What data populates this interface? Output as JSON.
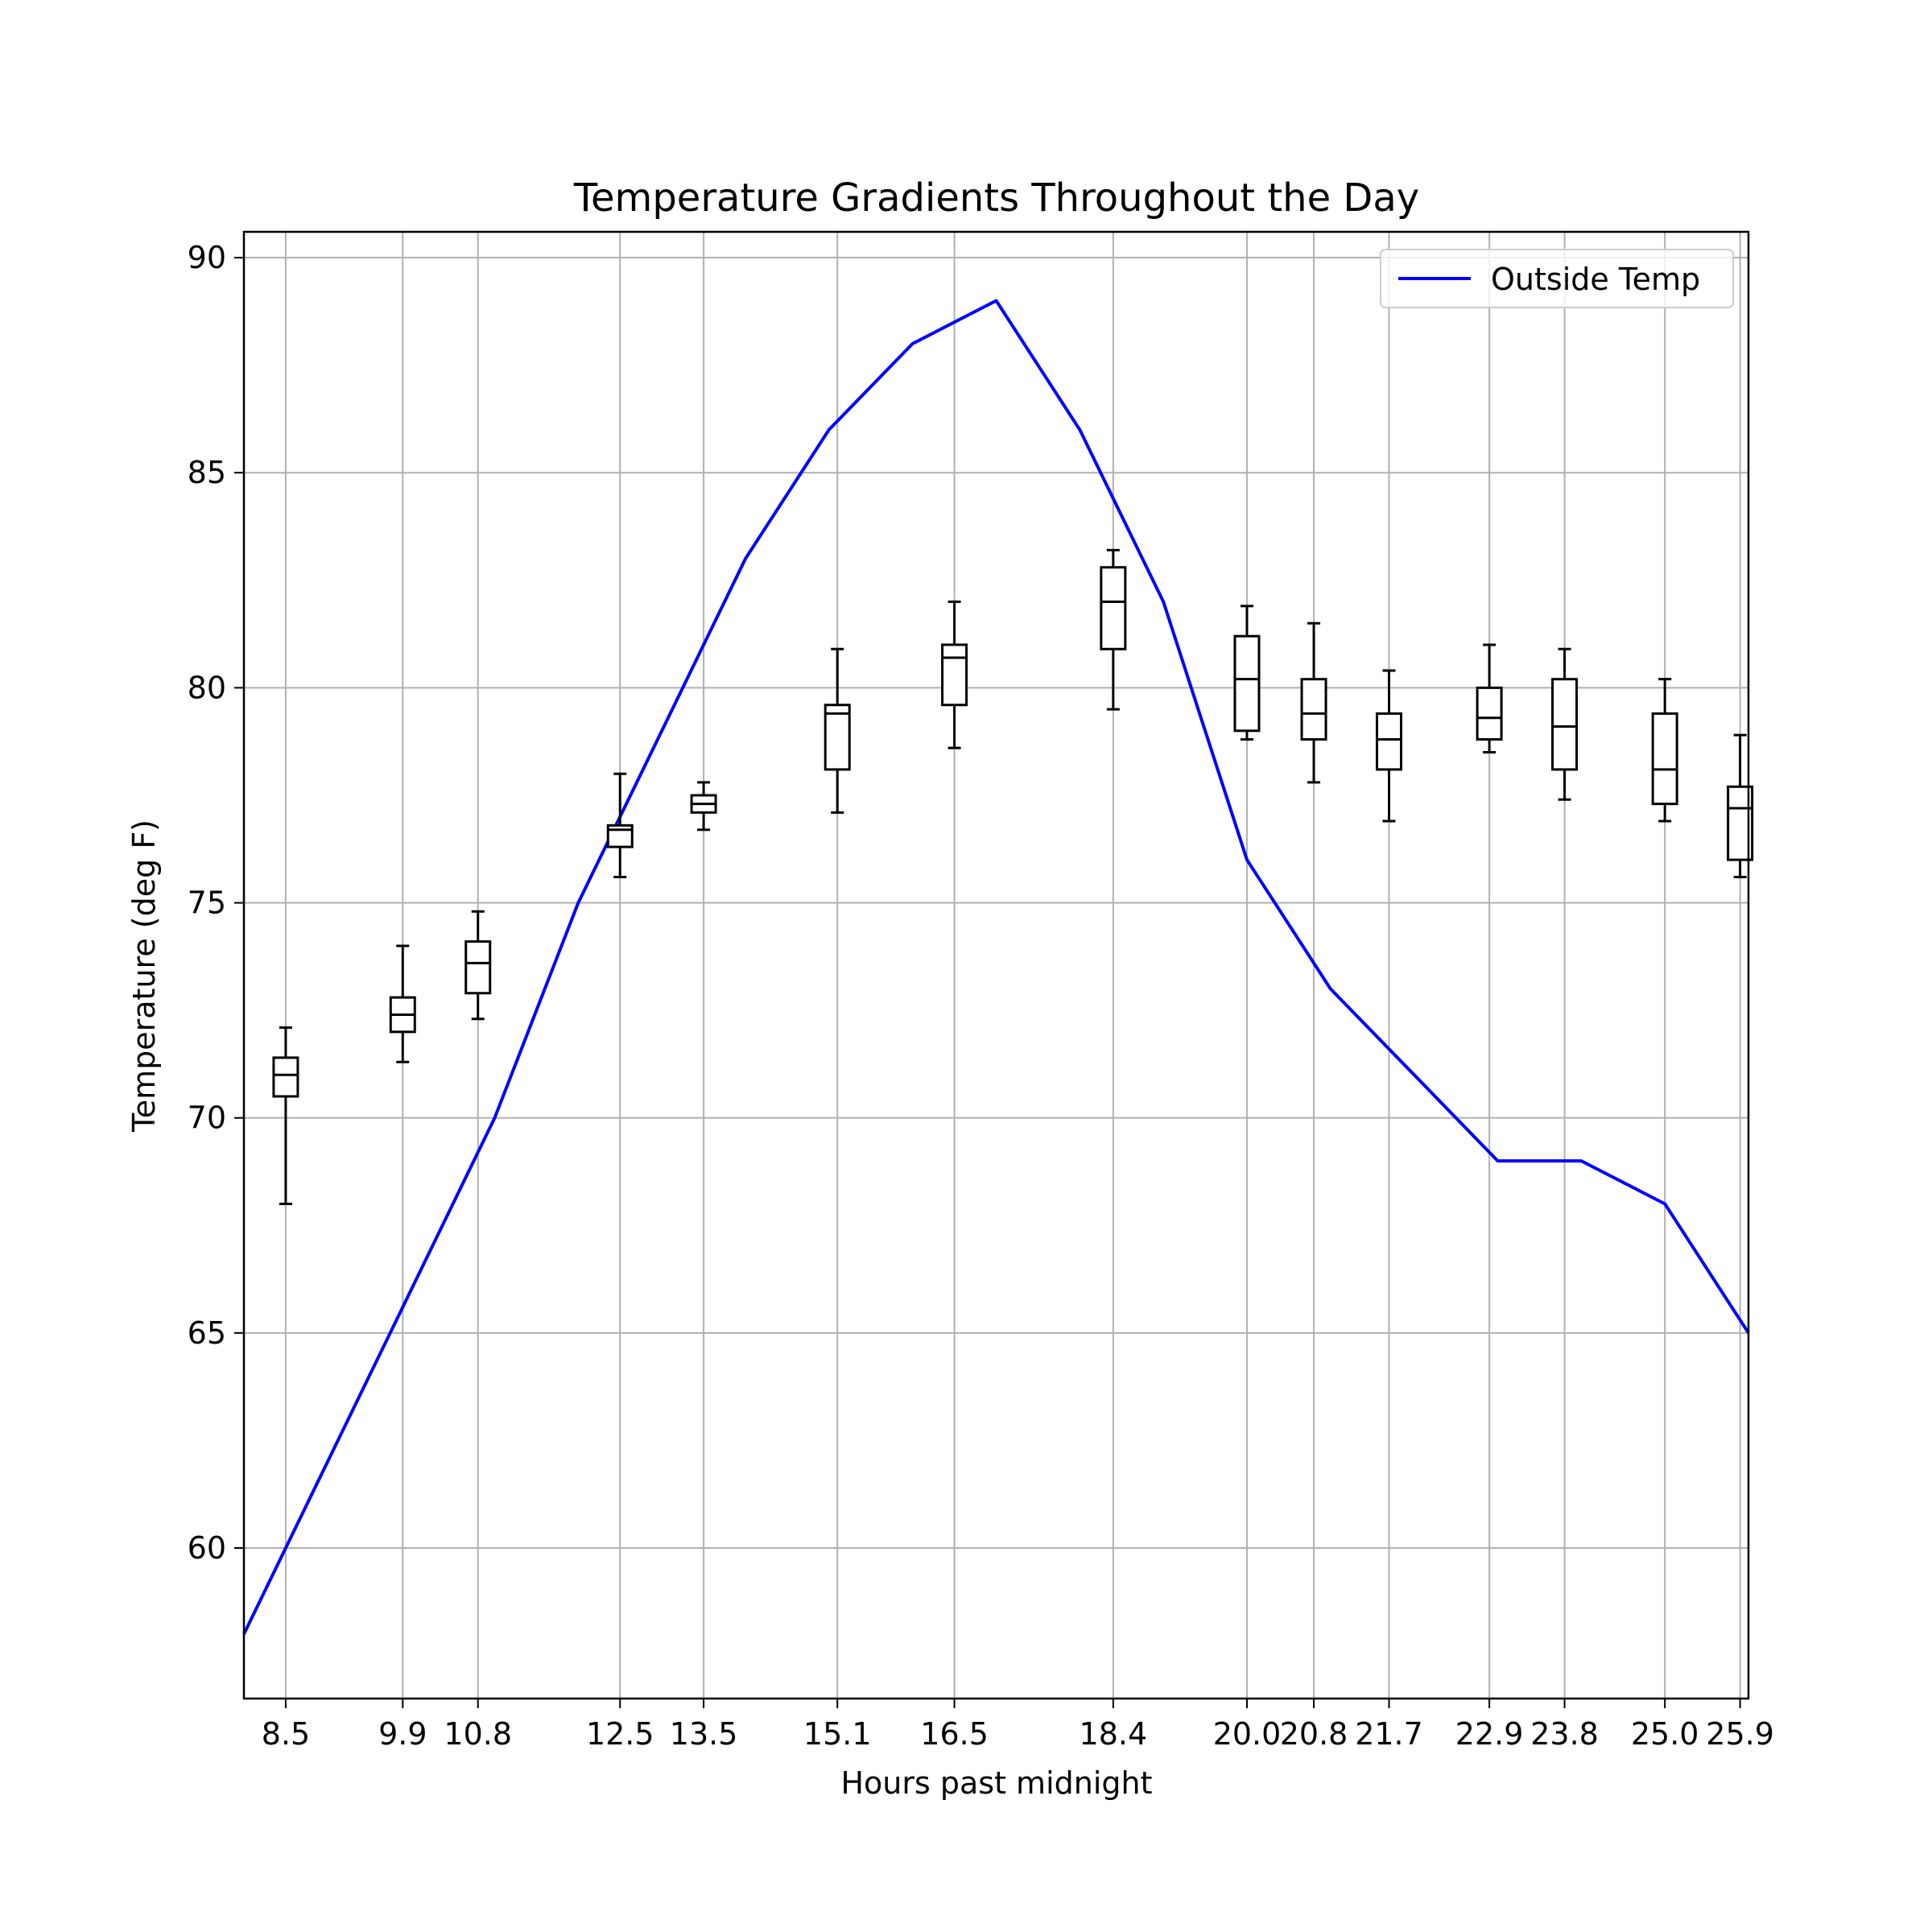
{
  "chart_data": {
    "type": "box",
    "title": "Temperature Gradients Throughout the Day",
    "xlabel": "Hours past midnight",
    "ylabel": "Temperature (deg F)",
    "xlim": [
      8.0,
      26.0
    ],
    "ylim": [
      56.5,
      90.6
    ],
    "x_ticks": [
      8.5,
      9.9,
      10.8,
      12.5,
      13.5,
      15.1,
      16.5,
      18.4,
      20.0,
      20.8,
      21.7,
      22.9,
      23.8,
      25.0,
      25.9
    ],
    "x_tick_labels": [
      "8.5",
      "9.9",
      "10.8",
      "12.5",
      "13.5",
      "15.1",
      "16.5",
      "18.4",
      "20.0",
      "20.8",
      "21.7",
      "22.9",
      "23.8",
      "25.0",
      "25.9"
    ],
    "y_ticks": [
      60,
      65,
      70,
      75,
      80,
      85,
      90
    ],
    "y_tick_labels": [
      "60",
      "65",
      "70",
      "75",
      "80",
      "85",
      "90"
    ],
    "grid": true,
    "legend": {
      "position": "top-right",
      "entries": [
        "Outside Temp"
      ]
    },
    "boxes": [
      {
        "x": 8.5,
        "whisker_low": 68.0,
        "q1": 70.5,
        "median": 71.0,
        "q3": 71.4,
        "whisker_high": 72.1
      },
      {
        "x": 9.9,
        "whisker_low": 71.3,
        "q1": 72.0,
        "median": 72.4,
        "q3": 72.8,
        "whisker_high": 74.0
      },
      {
        "x": 10.8,
        "whisker_low": 72.3,
        "q1": 72.9,
        "median": 73.6,
        "q3": 74.1,
        "whisker_high": 74.8
      },
      {
        "x": 12.5,
        "whisker_low": 75.6,
        "q1": 76.3,
        "median": 76.7,
        "q3": 76.8,
        "whisker_high": 78.0
      },
      {
        "x": 13.5,
        "whisker_low": 76.7,
        "q1": 77.1,
        "median": 77.3,
        "q3": 77.5,
        "whisker_high": 77.8
      },
      {
        "x": 15.1,
        "whisker_low": 77.1,
        "q1": 78.1,
        "median": 79.4,
        "q3": 79.6,
        "whisker_high": 80.9
      },
      {
        "x": 16.5,
        "whisker_low": 78.6,
        "q1": 79.6,
        "median": 80.7,
        "q3": 81.0,
        "whisker_high": 82.0
      },
      {
        "x": 18.4,
        "whisker_low": 79.5,
        "q1": 80.9,
        "median": 82.0,
        "q3": 82.8,
        "whisker_high": 83.2
      },
      {
        "x": 20.0,
        "whisker_low": 78.8,
        "q1": 79.0,
        "median": 80.2,
        "q3": 81.2,
        "whisker_high": 81.9
      },
      {
        "x": 20.8,
        "whisker_low": 77.8,
        "q1": 78.8,
        "median": 79.4,
        "q3": 80.2,
        "whisker_high": 81.5
      },
      {
        "x": 21.7,
        "whisker_low": 76.9,
        "q1": 78.1,
        "median": 78.8,
        "q3": 79.4,
        "whisker_high": 80.4
      },
      {
        "x": 22.9,
        "whisker_low": 78.5,
        "q1": 78.8,
        "median": 79.3,
        "q3": 80.0,
        "whisker_high": 81.0
      },
      {
        "x": 23.8,
        "whisker_low": 77.4,
        "q1": 78.1,
        "median": 79.1,
        "q3": 80.2,
        "whisker_high": 80.9
      },
      {
        "x": 25.0,
        "whisker_low": 76.9,
        "q1": 77.3,
        "median": 78.1,
        "q3": 79.4,
        "whisker_high": 80.2
      },
      {
        "x": 25.9,
        "whisker_low": 75.6,
        "q1": 76.0,
        "median": 77.2,
        "q3": 77.7,
        "whisker_high": 78.9
      }
    ],
    "series": [
      {
        "name": "Outside Temp",
        "type": "line",
        "color": "#0000ff",
        "x": [
          8.0,
          9.0,
          10.0,
          11.0,
          12.0,
          13.0,
          14.0,
          15.0,
          16.0,
          17.0,
          18.0,
          19.0,
          20.0,
          21.0,
          22.0,
          23.0,
          24.0,
          25.0,
          26.0
        ],
        "y": [
          58,
          62,
          66,
          70,
          75,
          79,
          83,
          86,
          88,
          89,
          86,
          82,
          76,
          73,
          71,
          69,
          69,
          68,
          65
        ]
      }
    ]
  }
}
